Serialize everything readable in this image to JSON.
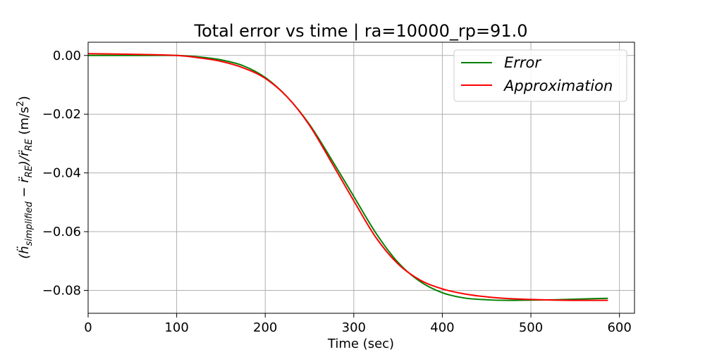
{
  "chart_data": {
    "type": "line",
    "title": "Total error vs time | ra=10000_rp=91.0",
    "xlabel": "Time (sec)",
    "ylabel": {
      "main": "(ḧ",
      "sub1": "simplified",
      "mid": " − r̈",
      "sub2": "RE",
      "mid2": ")/r̈",
      "sub3": "RE",
      "unit_pre": " (m/s",
      "sup": "2",
      "unit_post": ")"
    },
    "xlim": [
      0,
      617
    ],
    "ylim": [
      -0.0878,
      0.0045
    ],
    "x_ticks": [
      0,
      100,
      200,
      300,
      400,
      500,
      600
    ],
    "x_tick_labels": [
      "0",
      "100",
      "200",
      "300",
      "400",
      "500",
      "600"
    ],
    "y_ticks": [
      0.0,
      -0.02,
      -0.04,
      -0.06,
      -0.08
    ],
    "y_tick_labels": [
      "0.00",
      "−0.02",
      "−0.04",
      "−0.06",
      "−0.08"
    ],
    "grid": true,
    "legend_position": "top-right",
    "series": [
      {
        "name": "Error",
        "color": "#008000",
        "x": [
          0,
          50,
          100,
          125,
          150,
          175,
          200,
          225,
          250,
          275,
          300,
          325,
          350,
          375,
          400,
          425,
          450,
          475,
          500,
          525,
          550,
          587
        ],
        "y": [
          0.0,
          0.0,
          0.0,
          -0.0005,
          -0.0015,
          -0.0035,
          -0.0075,
          -0.0142,
          -0.0235,
          -0.0355,
          -0.048,
          -0.0605,
          -0.0705,
          -0.077,
          -0.0808,
          -0.0826,
          -0.0832,
          -0.0834,
          -0.0833,
          -0.0832,
          -0.083,
          -0.0827
        ]
      },
      {
        "name": "Approximation",
        "color": "#ff0000",
        "x": [
          0,
          50,
          100,
          125,
          150,
          175,
          200,
          225,
          250,
          275,
          300,
          325,
          350,
          375,
          400,
          425,
          450,
          475,
          500,
          525,
          550,
          587
        ],
        "y": [
          0.0006,
          0.0004,
          0.0,
          -0.0008,
          -0.002,
          -0.0042,
          -0.0078,
          -0.0142,
          -0.0238,
          -0.0365,
          -0.0495,
          -0.062,
          -0.071,
          -0.0765,
          -0.0795,
          -0.0812,
          -0.0822,
          -0.0828,
          -0.0831,
          -0.0833,
          -0.0834,
          -0.0834
        ]
      }
    ]
  }
}
